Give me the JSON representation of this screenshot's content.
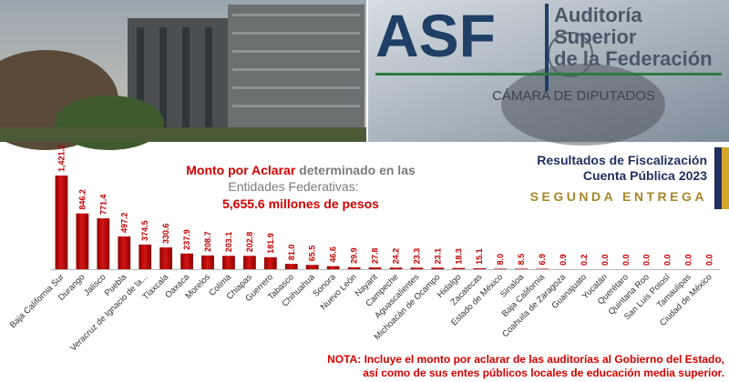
{
  "header": {
    "logo": "ASF",
    "logo_line1": "Auditoría",
    "logo_line2": "Superior",
    "logo_line3": "de la Federación",
    "logo_footer": "CÁMARA DE DIPUTADOS"
  },
  "info_box": {
    "line1": "Resultados de Fiscalización",
    "line2": "Cuenta Pública 2023",
    "line3": "SEGUNDA ENTREGA"
  },
  "chart_data": {
    "type": "bar",
    "title": {
      "highlight": "Monto por Aclarar",
      "rest": "determinado en las",
      "line2": "Entidades Federativas:"
    },
    "subtitle": "5,655.6 millones de pesos",
    "color": "#c00000",
    "categories": [
      "Baja California Sur",
      "Durango",
      "Jalisco",
      "Puebla",
      "Veracruz de Ignacio de la...",
      "Tlaxcala",
      "Oaxaca",
      "Morelos",
      "Colima",
      "Chiapas",
      "Guerrero",
      "Tabasco",
      "Chihuahua",
      "Sonora",
      "Nuevo León",
      "Nayarit",
      "Campeche",
      "Aguascalientes",
      "Michoacán de Ocampo",
      "Hidalgo",
      "Zacatecas",
      "Estado de México",
      "Sinaloa",
      "Baja California",
      "Coahuila de Zaragoza",
      "Guanajuato",
      "Yucatán",
      "Querétaro",
      "Quintana Roo",
      "San Luis Potosí",
      "Tamaulipas",
      "Ciudad de México"
    ],
    "values": [
      1421.2,
      846.2,
      771.4,
      497.2,
      374.5,
      330.6,
      237.9,
      208.7,
      203.1,
      202.8,
      181.9,
      81.0,
      65.5,
      46.6,
      29.9,
      27.8,
      24.2,
      23.3,
      23.1,
      18.3,
      15.1,
      8.0,
      8.5,
      6.9,
      0.9,
      0.2,
      0.0,
      0.0,
      0.0,
      0.0,
      0.0,
      0.0
    ],
    "value_labels": [
      "1,421.2",
      "846.2",
      "771.4",
      "497.2",
      "374.5",
      "330.6",
      "237.9",
      "208.7",
      "203.1",
      "202.8",
      "181.9",
      "81.0",
      "65.5",
      "46.6",
      "29.9",
      "27.8",
      "24.2",
      "23.3",
      "23.1",
      "18.3",
      "15.1",
      "8.0",
      "8.5",
      "6.9",
      "0.9",
      "0.2",
      "0.0",
      "0.0",
      "0.0",
      "0.0",
      "0.0",
      "0.0"
    ],
    "note": {
      "label": "NOTA:",
      "line1": "Incluye el monto por aclarar de las auditorías al Gobierno del Estado,",
      "line2": "así como de sus entes públicos locales de educación media superior."
    }
  }
}
